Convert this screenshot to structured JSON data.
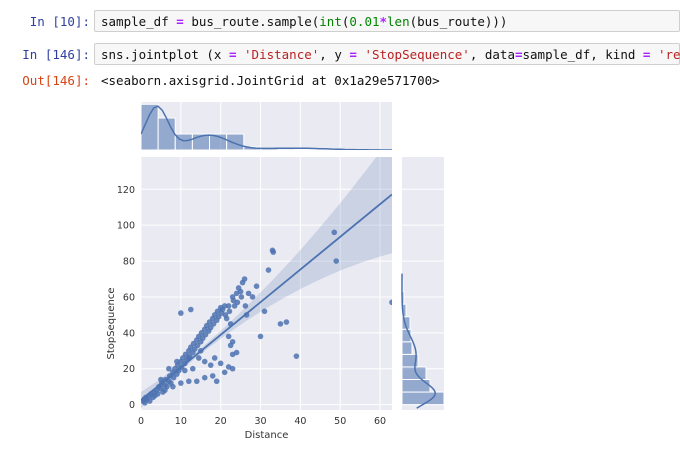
{
  "cells": [
    {
      "prompt": "In [10]:",
      "code": [
        {
          "t": "sample_df "
        },
        {
          "t": "=",
          "c": "op"
        },
        {
          "t": " bus_route"
        },
        {
          "t": "."
        },
        {
          "t": "sample("
        },
        {
          "t": "int",
          "c": "bi"
        },
        {
          "t": "("
        },
        {
          "t": "0.01",
          "c": "num"
        },
        {
          "t": "*",
          "c": "op"
        },
        {
          "t": "len",
          "c": "bi"
        },
        {
          "t": "(bus_route)))"
        }
      ]
    },
    {
      "prompt": "In [146]:",
      "code": [
        {
          "t": "sns"
        },
        {
          "t": "."
        },
        {
          "t": "jointplot (x "
        },
        {
          "t": "=",
          "c": "op"
        },
        {
          "t": " "
        },
        {
          "t": "'Distance'",
          "c": "str"
        },
        {
          "t": ", y "
        },
        {
          "t": "=",
          "c": "op"
        },
        {
          "t": " "
        },
        {
          "t": "'StopSequence'",
          "c": "str"
        },
        {
          "t": ", data"
        },
        {
          "t": "=",
          "c": "op"
        },
        {
          "t": "sample_df, kind "
        },
        {
          "t": "=",
          "c": "op"
        },
        {
          "t": " "
        },
        {
          "t": "'reg'",
          "c": "str"
        },
        {
          "t": ")"
        }
      ]
    }
  ],
  "output": {
    "prompt": "Out[146]:",
    "text": "<seaborn.axisgrid.JointGrid at 0x1a29e571700>"
  },
  "chart_data": {
    "type": "scatter",
    "xlabel": "Distance",
    "ylabel": "StopSequence",
    "xlim": [
      0,
      63
    ],
    "ylim": [
      -3,
      138
    ],
    "xticks": [
      0,
      10,
      20,
      30,
      40,
      50,
      60
    ],
    "yticks": [
      0,
      20,
      40,
      60,
      80,
      100,
      120
    ],
    "grid": true,
    "regression": {
      "intercept": 2.5,
      "slope": 1.82,
      "x_range": [
        0,
        63
      ]
    },
    "points": [
      [
        0.5,
        2
      ],
      [
        0.8,
        3
      ],
      [
        1,
        1
      ],
      [
        1.2,
        4
      ],
      [
        1.5,
        3
      ],
      [
        2,
        5
      ],
      [
        2.2,
        2
      ],
      [
        2.5,
        6
      ],
      [
        3,
        4
      ],
      [
        3.2,
        7
      ],
      [
        3.5,
        5
      ],
      [
        4,
        8
      ],
      [
        4.2,
        6
      ],
      [
        4.5,
        10
      ],
      [
        5,
        9
      ],
      [
        5.2,
        12
      ],
      [
        5.5,
        7
      ],
      [
        6,
        11
      ],
      [
        6.2,
        14
      ],
      [
        6.5,
        10
      ],
      [
        7,
        13
      ],
      [
        7.2,
        16
      ],
      [
        7.5,
        12
      ],
      [
        8,
        18
      ],
      [
        8.2,
        15
      ],
      [
        8.5,
        20
      ],
      [
        9,
        17
      ],
      [
        9.2,
        22
      ],
      [
        9.5,
        19
      ],
      [
        10,
        24
      ],
      [
        10.2,
        21
      ],
      [
        10.5,
        26
      ],
      [
        11,
        23
      ],
      [
        11.2,
        28
      ],
      [
        11.5,
        25
      ],
      [
        12,
        30
      ],
      [
        12.2,
        27
      ],
      [
        12.5,
        32
      ],
      [
        13,
        29
      ],
      [
        13.2,
        34
      ],
      [
        13.5,
        31
      ],
      [
        14,
        36
      ],
      [
        14.2,
        33
      ],
      [
        14.5,
        38
      ],
      [
        15,
        35
      ],
      [
        15.2,
        40
      ],
      [
        15.5,
        37
      ],
      [
        16,
        42
      ],
      [
        16.2,
        39
      ],
      [
        16.5,
        44
      ],
      [
        17,
        41
      ],
      [
        17.2,
        46
      ],
      [
        17.5,
        43
      ],
      [
        18,
        48
      ],
      [
        18.2,
        45
      ],
      [
        18.5,
        50
      ],
      [
        19,
        47
      ],
      [
        19.2,
        52
      ],
      [
        19.5,
        49
      ],
      [
        20,
        54
      ],
      [
        20.2,
        51
      ],
      [
        20.5,
        53
      ],
      [
        21,
        55
      ],
      [
        21.2,
        50
      ],
      [
        21.5,
        48
      ],
      [
        22,
        55
      ],
      [
        22.2,
        52
      ],
      [
        22.5,
        45
      ],
      [
        23,
        60
      ],
      [
        23.2,
        58
      ],
      [
        23.5,
        55
      ],
      [
        24,
        62
      ],
      [
        24.2,
        57
      ],
      [
        24.5,
        65
      ],
      [
        25,
        63
      ],
      [
        25.2,
        60
      ],
      [
        25.5,
        68
      ],
      [
        26,
        70
      ],
      [
        26.2,
        55
      ],
      [
        26.5,
        50
      ],
      [
        27,
        62
      ],
      [
        28,
        60
      ],
      [
        29,
        66
      ],
      [
        30,
        38
      ],
      [
        31,
        52
      ],
      [
        32,
        75
      ],
      [
        33,
        86
      ],
      [
        33.2,
        85
      ],
      [
        35,
        45
      ],
      [
        36.5,
        46
      ],
      [
        39,
        27
      ],
      [
        48.5,
        96
      ],
      [
        49,
        80
      ],
      [
        63,
        57
      ],
      [
        5,
        14
      ],
      [
        7,
        20
      ],
      [
        9,
        24
      ],
      [
        6,
        8
      ],
      [
        8,
        10
      ],
      [
        10,
        12
      ],
      [
        12,
        13
      ],
      [
        14,
        13
      ],
      [
        16,
        15
      ],
      [
        18,
        16
      ],
      [
        19,
        13
      ],
      [
        21,
        18
      ],
      [
        22,
        21
      ],
      [
        23,
        28
      ],
      [
        22.5,
        33
      ],
      [
        23,
        35
      ],
      [
        22,
        38
      ],
      [
        17.5,
        22
      ],
      [
        20,
        23
      ],
      [
        16,
        24
      ],
      [
        14.5,
        26
      ],
      [
        13,
        20
      ],
      [
        12,
        26
      ],
      [
        11,
        19
      ],
      [
        10,
        51
      ],
      [
        12.5,
        53
      ],
      [
        15,
        30
      ],
      [
        18.5,
        26
      ],
      [
        23,
        20
      ],
      [
        24,
        29
      ]
    ],
    "x_marginal": {
      "bin_edges": [
        0,
        4.3,
        8.6,
        12.9,
        17.2,
        21.5,
        25.8,
        30.1,
        34.4,
        38.7,
        43,
        47.3,
        51.6,
        55.9,
        60.2,
        64.5
      ],
      "counts": [
        20,
        14,
        7,
        7,
        7,
        7,
        1.3,
        0.8,
        0.5,
        0.2,
        0.2,
        0.3,
        0.1,
        0.1,
        0.1
      ]
    },
    "y_marginal": {
      "bin_edges": [
        0,
        7,
        14,
        21,
        28,
        35,
        42,
        49,
        56,
        63,
        70
      ],
      "counts": [
        42,
        28,
        24,
        16,
        10,
        9,
        8,
        4,
        2,
        1
      ]
    }
  }
}
